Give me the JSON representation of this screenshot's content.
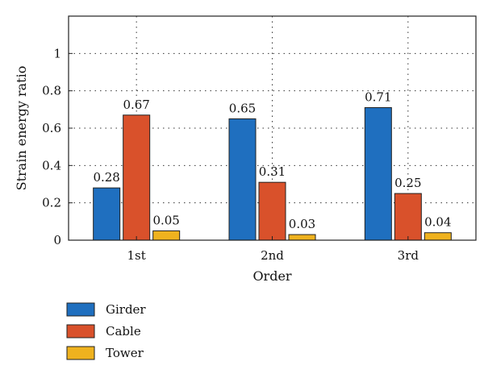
{
  "chart_data": {
    "type": "bar",
    "categories": [
      "1st",
      "2nd",
      "3rd"
    ],
    "series": [
      {
        "name": "Girder",
        "color": "#1f6fbf",
        "values": [
          0.28,
          0.65,
          0.71
        ],
        "labels": [
          "0.28",
          "0.65",
          "0.71"
        ]
      },
      {
        "name": "Cable",
        "color": "#d9512b",
        "values": [
          0.67,
          0.31,
          0.25
        ],
        "labels": [
          "0.67",
          "0.31",
          "0.25"
        ]
      },
      {
        "name": "Tower",
        "color": "#efb21e",
        "values": [
          0.05,
          0.03,
          0.04
        ],
        "labels": [
          "0.05",
          "0.03",
          "0.04"
        ]
      }
    ],
    "xlabel": "Order",
    "ylabel": "Strain energy ratio",
    "ylim": [
      0,
      1.2
    ],
    "yticks": [
      {
        "value": 0,
        "label": "0"
      },
      {
        "value": 0.2,
        "label": "0.2"
      },
      {
        "value": 0.4,
        "label": "0.4"
      },
      {
        "value": 0.6,
        "label": "0.6"
      },
      {
        "value": 0.8,
        "label": "0.8"
      },
      {
        "value": 1,
        "label": "1"
      }
    ],
    "grid": true,
    "legend_position": "bottom-left"
  }
}
